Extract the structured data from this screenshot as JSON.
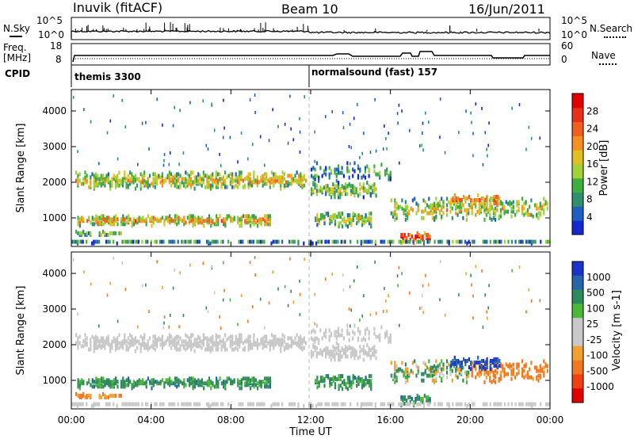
{
  "header": {
    "station": "Inuvik (fitACF)",
    "beam": "Beam 10",
    "date": "16/Jun/2011"
  },
  "noise_panel": {
    "left_label": "N.Sky",
    "left_tick_top": "10^5",
    "left_tick_bottom": "10^0",
    "right_tick_top": "10^5",
    "right_tick_bottom": "10^0",
    "right_label": "N.Search"
  },
  "freq_panel": {
    "left_label_1": "Freq.",
    "left_label_2": "[MHz]",
    "left_tick_top": "18",
    "left_tick_bottom": "8",
    "right_tick_top": "60",
    "right_tick_bottom": "0",
    "right_label": "Nave"
  },
  "cpid_panel": {
    "label": "CPID",
    "modes": [
      "themis 3300",
      "normalsound (fast) 157"
    ]
  },
  "chart_data": [
    {
      "type": "heatmap",
      "quantity": "power",
      "ylabel": "Slant Range [km]",
      "xlabel": "Time UT",
      "x_ticks": [
        "00:00",
        "04:00",
        "08:00",
        "12:00",
        "16:00",
        "20:00",
        "00:00"
      ],
      "y_ticks": [
        1000,
        2000,
        3000,
        4000
      ],
      "ylim": [
        200,
        4600
      ],
      "colorbar_label": "Power [dB]",
      "colorbar_ticks": [
        4,
        8,
        12,
        16,
        20,
        24,
        28
      ],
      "colorbar_colors": [
        "#1428d2",
        "#1f5fbf",
        "#2f8f6f",
        "#3fae3f",
        "#9fd23a",
        "#e0c020",
        "#f49020",
        "#f06020",
        "#e83018",
        "#e00000"
      ],
      "features": [
        "scatter band ~1800-2400 km 00:00-12:00",
        "band ~700-1100 km 00:00-10:00",
        "enhanced power ~16:30-18:00 below 1000 km"
      ]
    },
    {
      "type": "heatmap",
      "quantity": "velocity",
      "ylabel": "Slant Range [km]",
      "xlabel": "Time UT",
      "x_ticks": [
        "00:00",
        "04:00",
        "08:00",
        "12:00",
        "16:00",
        "20:00",
        "00:00"
      ],
      "y_ticks": [
        1000,
        2000,
        3000,
        4000
      ],
      "ylim": [
        200,
        4600
      ],
      "colorbar_label": "Velocity [m s-1]",
      "colorbar_ticks": [
        1000,
        500,
        100,
        25,
        -25,
        -100,
        -500,
        -1000
      ],
      "colorbar_colors": [
        "#1a33c8",
        "#2666a8",
        "#2e8a5a",
        "#4cb83a",
        "#c8c8c8",
        "#c8c8c8",
        "#f2a030",
        "#f07820",
        "#ee4010",
        "#e00000"
      ],
      "features": [
        "ground scatter grey ~2000 km",
        "green/blue positive velocity 900-1100 km 04:00-09:00",
        "blue patch ~1500 km near 20:00",
        "orange negative velocities ~1100 km 20:00-23:00"
      ]
    }
  ]
}
